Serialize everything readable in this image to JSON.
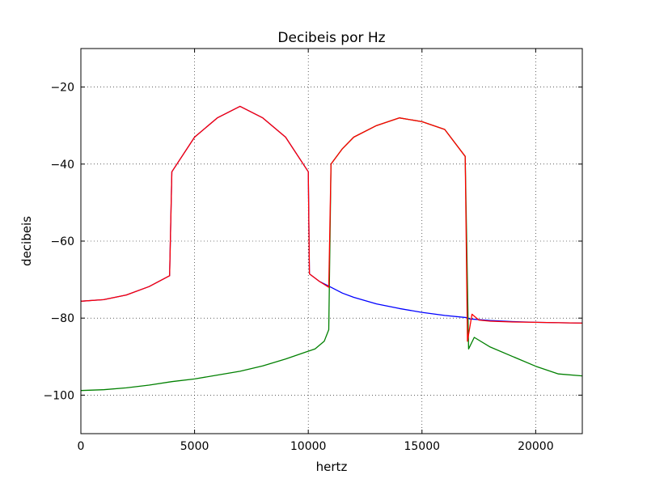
{
  "chart_data": {
    "type": "line",
    "title": "Decibeis por Hz",
    "xlabel": "hertz",
    "ylabel": "decibeis",
    "xlim": [
      0,
      22050
    ],
    "ylim": [
      -110,
      -10
    ],
    "xticks": [
      0,
      5000,
      10000,
      15000,
      20000
    ],
    "yticks": [
      -100,
      -80,
      -60,
      -40,
      -20
    ],
    "xtick_labels": [
      "0",
      "5000",
      "10000",
      "15000",
      "20000"
    ],
    "ytick_labels": [
      "−100",
      "−80",
      "−60",
      "−40",
      "−20"
    ],
    "grid": true,
    "legend": "none",
    "series": [
      {
        "color": "#0000ff",
        "x": [
          0,
          1000,
          2000,
          3000,
          3900,
          4000,
          5000,
          6000,
          7000,
          8000,
          9000,
          10000,
          10050,
          10500,
          11000,
          11500,
          12000,
          13000,
          14000,
          15000,
          16000,
          17000,
          17100,
          18000,
          19000,
          20000,
          21000,
          22050
        ],
        "values": [
          -75.6,
          -75.2,
          -74,
          -71.8,
          -69,
          -42,
          -33,
          -28,
          -25,
          -28,
          -33,
          -42,
          -68.5,
          -70.5,
          -72,
          -73.5,
          -74.6,
          -76.3,
          -77.5,
          -78.5,
          -79.3,
          -79.9,
          -80.2,
          -80.6,
          -80.9,
          -81.1,
          -81.2,
          -81.3
        ]
      },
      {
        "color": "#008000",
        "x": [
          0,
          1000,
          2000,
          3000,
          4000,
          5000,
          6000,
          7000,
          8000,
          9000,
          9800,
          10300,
          10700,
          10900,
          11000,
          11500,
          12000,
          13000,
          14000,
          15000,
          16000,
          16900,
          17050,
          17300,
          18000,
          19000,
          20000,
          21000,
          22050
        ],
        "values": [
          -98.8,
          -98.6,
          -98.1,
          -97.4,
          -96.5,
          -95.8,
          -94.8,
          -93.8,
          -92.4,
          -90.6,
          -89,
          -88,
          -86,
          -83,
          -40,
          -36,
          -33,
          -30,
          -28,
          -29,
          -31,
          -38,
          -88,
          -85,
          -87.5,
          -90,
          -92.5,
          -94.5,
          -95
        ]
      },
      {
        "color": "#ff0000",
        "x": [
          0,
          1000,
          2000,
          3000,
          3900,
          4000,
          5000,
          6000,
          7000,
          8000,
          9000,
          10000,
          10050,
          10500,
          10900,
          11000,
          11500,
          12000,
          13000,
          14000,
          15000,
          16000,
          16900,
          17000,
          17200,
          17500,
          18000,
          19000,
          20000,
          21000,
          22050
        ],
        "values": [
          -75.6,
          -75.2,
          -74,
          -71.8,
          -69,
          -42,
          -33,
          -28,
          -25,
          -28,
          -33,
          -42,
          -68.5,
          -70.5,
          -72,
          -40,
          -36,
          -33,
          -30,
          -28,
          -29,
          -31,
          -38,
          -86,
          -79,
          -80.5,
          -80.8,
          -81,
          -81.1,
          -81.2,
          -81.3
        ]
      }
    ]
  }
}
